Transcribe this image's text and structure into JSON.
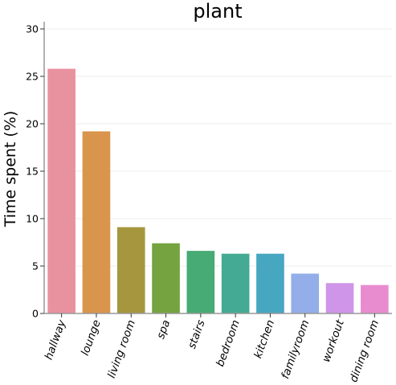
{
  "chart_data": {
    "type": "bar",
    "title": "plant",
    "xlabel": "",
    "ylabel": "Time spent (%)",
    "ylim": [
      0,
      30
    ],
    "yticks": [
      "0",
      "5",
      "10",
      "15",
      "20",
      "25",
      "30"
    ],
    "categories": [
      "hallway",
      "lounge",
      "living room",
      "spa",
      "stairs",
      "bedroom",
      "kitchen",
      "familyroom",
      "workout",
      "dining room"
    ],
    "values": [
      25.8,
      19.2,
      9.1,
      7.4,
      6.6,
      6.3,
      6.3,
      4.2,
      3.2,
      3.0
    ],
    "colors": [
      "#e9929f",
      "#d8954b",
      "#a6973f",
      "#75a340",
      "#46ab74",
      "#44aa93",
      "#47a6c0",
      "#93aee8",
      "#cf95e8",
      "#e88ccf"
    ],
    "grid": true,
    "legend": "none"
  }
}
